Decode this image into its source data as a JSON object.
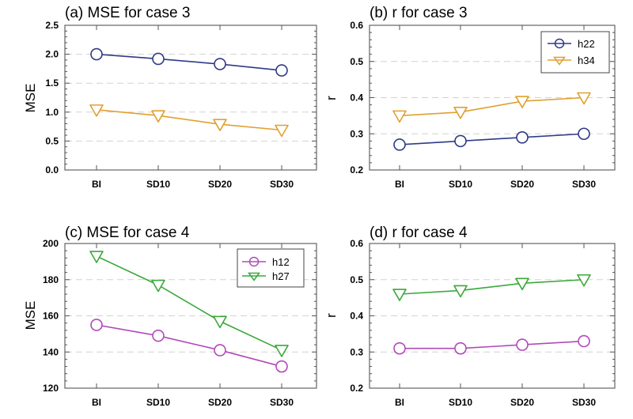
{
  "chart_data": [
    {
      "type": "line",
      "title": "(a) MSE for case 3",
      "xlabel": "",
      "ylabel": "MSE",
      "categories": [
        "BI",
        "SD10",
        "SD20",
        "SD30"
      ],
      "ylim": [
        0.0,
        2.5
      ],
      "yticks": [
        "0.0",
        "0.5",
        "1.0",
        "1.5",
        "2.0",
        "2.5"
      ],
      "grid": true,
      "legend": false,
      "series": [
        {
          "name": "h22",
          "marker": "circle",
          "color": "#2e3a87",
          "values": [
            2.0,
            1.92,
            1.83,
            1.72
          ]
        },
        {
          "name": "h34",
          "marker": "triangle-down",
          "color": "#e0a030",
          "values": [
            1.04,
            0.94,
            0.79,
            0.69
          ]
        }
      ]
    },
    {
      "type": "line",
      "title": "(b) r for case 3",
      "xlabel": "",
      "ylabel": "r",
      "categories": [
        "BI",
        "SD10",
        "SD20",
        "SD30"
      ],
      "ylim": [
        0.2,
        0.6
      ],
      "yticks": [
        "0.2",
        "0.3",
        "0.4",
        "0.5",
        "0.6"
      ],
      "grid": true,
      "legend": true,
      "legend_position": "top-right",
      "series": [
        {
          "name": "h22",
          "marker": "circle",
          "color": "#2e3a87",
          "values": [
            0.27,
            0.28,
            0.29,
            0.3
          ]
        },
        {
          "name": "h34",
          "marker": "triangle-down",
          "color": "#e0a030",
          "values": [
            0.35,
            0.36,
            0.39,
            0.4
          ]
        }
      ]
    },
    {
      "type": "line",
      "title": "(c) MSE for case 4",
      "xlabel": "",
      "ylabel": "MSE",
      "categories": [
        "BI",
        "SD10",
        "SD20",
        "SD30"
      ],
      "ylim": [
        120,
        200
      ],
      "yticks": [
        "120",
        "140",
        "160",
        "180",
        "200"
      ],
      "grid": true,
      "legend": true,
      "legend_position": "top-right",
      "series": [
        {
          "name": "h12",
          "marker": "circle",
          "color": "#b04ab8",
          "values": [
            155,
            149,
            141,
            132
          ]
        },
        {
          "name": "h27",
          "marker": "triangle-down",
          "color": "#3aa83a",
          "values": [
            193,
            177,
            157,
            141
          ]
        }
      ]
    },
    {
      "type": "line",
      "title": "(d) r for case 4",
      "xlabel": "",
      "ylabel": "r",
      "categories": [
        "BI",
        "SD10",
        "SD20",
        "SD30"
      ],
      "ylim": [
        0.2,
        0.6
      ],
      "yticks": [
        "0.2",
        "0.3",
        "0.4",
        "0.5",
        "0.6"
      ],
      "grid": true,
      "legend": false,
      "series": [
        {
          "name": "h12",
          "marker": "circle",
          "color": "#b04ab8",
          "values": [
            0.31,
            0.31,
            0.32,
            0.33
          ]
        },
        {
          "name": "h27",
          "marker": "triangle-down",
          "color": "#3aa83a",
          "values": [
            0.46,
            0.47,
            0.49,
            0.5
          ]
        }
      ]
    }
  ]
}
